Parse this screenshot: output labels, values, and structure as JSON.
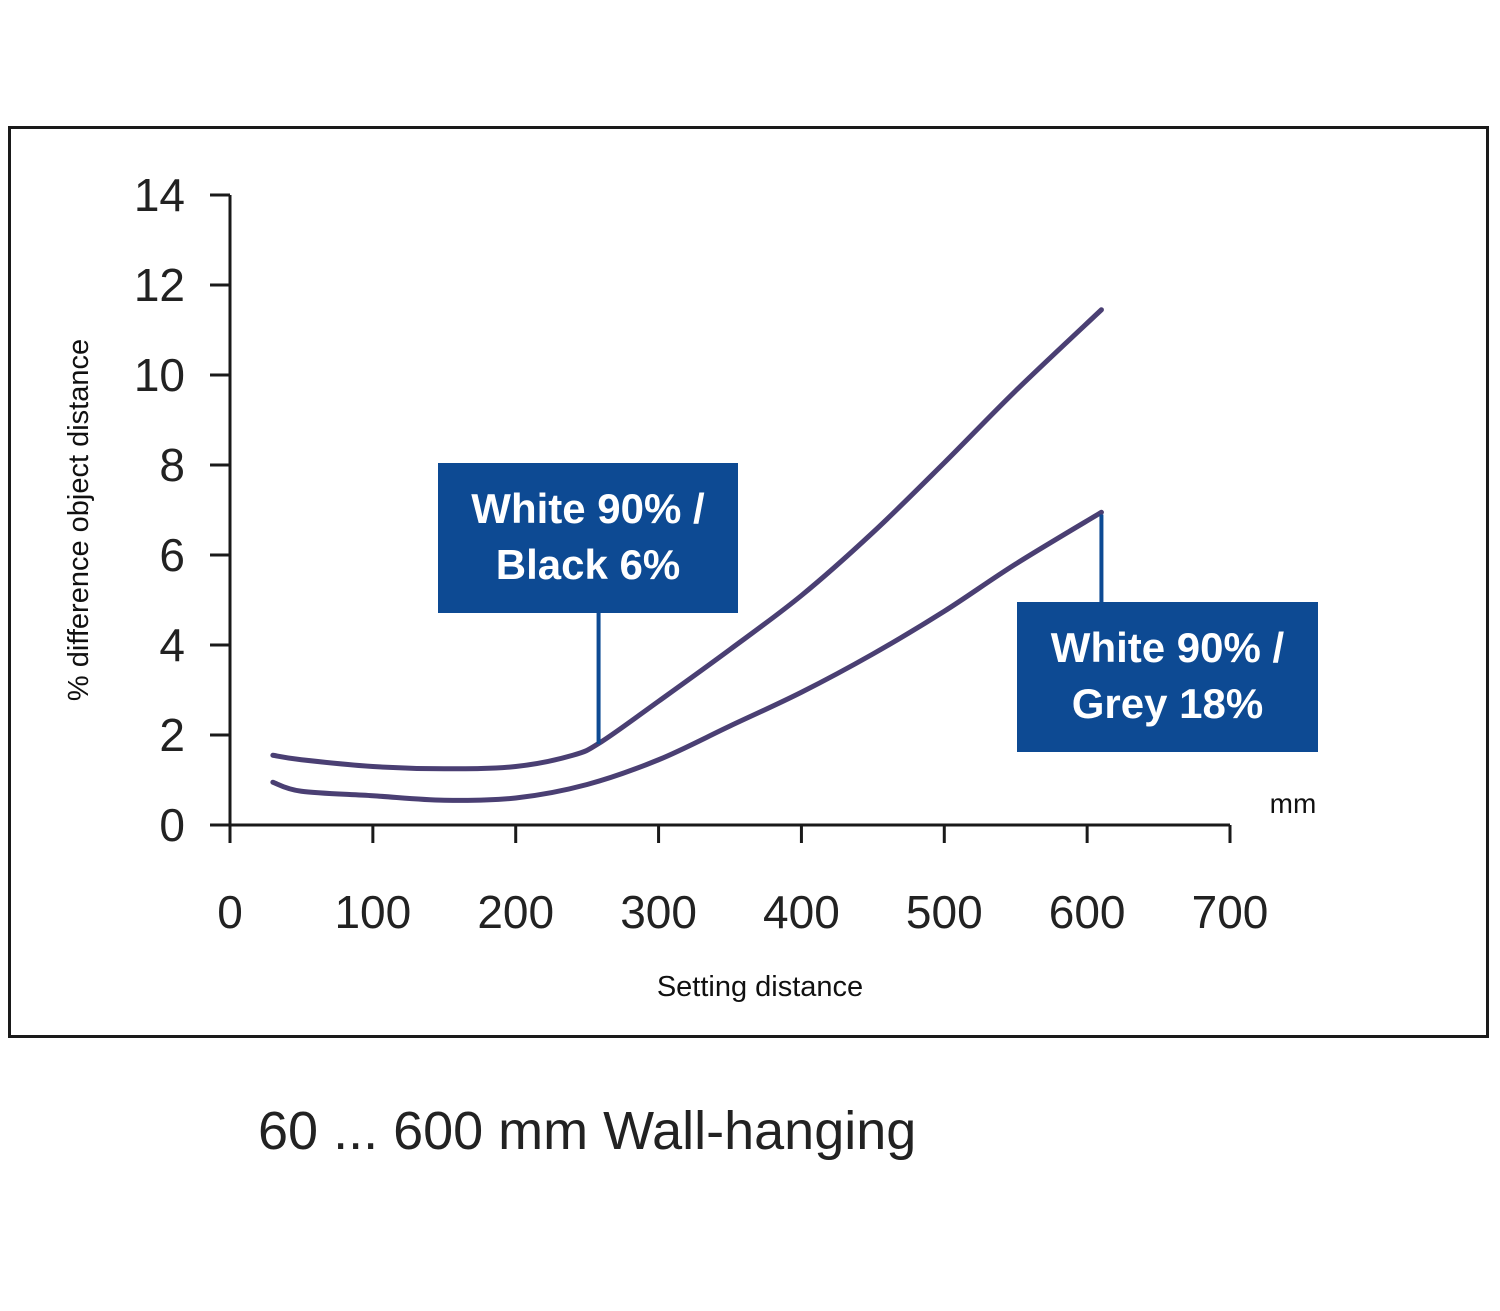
{
  "caption": "60 ... 600 mm Wall-hanging",
  "colors": {
    "line": "#4a3f73",
    "callout": "#0d4a93",
    "axis": "#1a1a1a"
  },
  "chart_data": {
    "type": "line",
    "xlabel": "Setting distance",
    "ylabel": "% difference object distance",
    "x_unit": "mm",
    "xlim": [
      0,
      700
    ],
    "ylim": [
      0,
      14
    ],
    "x_ticks": [
      0,
      100,
      200,
      300,
      400,
      500,
      600,
      700
    ],
    "y_ticks": [
      0,
      2,
      4,
      6,
      8,
      10,
      12,
      14
    ],
    "grid": false,
    "series": [
      {
        "name": "White 90% / Black 6%",
        "x": [
          30,
          50,
          100,
          150,
          200,
          240,
          260,
          300,
          350,
          400,
          450,
          500,
          550,
          610
        ],
        "y": [
          1.55,
          1.45,
          1.3,
          1.25,
          1.3,
          1.55,
          1.85,
          2.75,
          3.9,
          5.1,
          6.5,
          8.05,
          9.65,
          11.45
        ]
      },
      {
        "name": "White 90% / Grey 18%",
        "x": [
          30,
          50,
          100,
          150,
          200,
          250,
          300,
          350,
          400,
          450,
          500,
          550,
          610
        ],
        "y": [
          0.95,
          0.75,
          0.65,
          0.55,
          0.6,
          0.9,
          1.45,
          2.2,
          2.95,
          3.8,
          4.75,
          5.8,
          6.95
        ]
      }
    ],
    "annotations": [
      {
        "text_lines": [
          "White 90% /",
          "Black 6%"
        ],
        "series": 0,
        "x": 258,
        "y": 1.8
      },
      {
        "text_lines": [
          "White 90% /",
          "Grey 18%"
        ],
        "series": 1,
        "x": 610,
        "y": 6.9
      }
    ]
  }
}
